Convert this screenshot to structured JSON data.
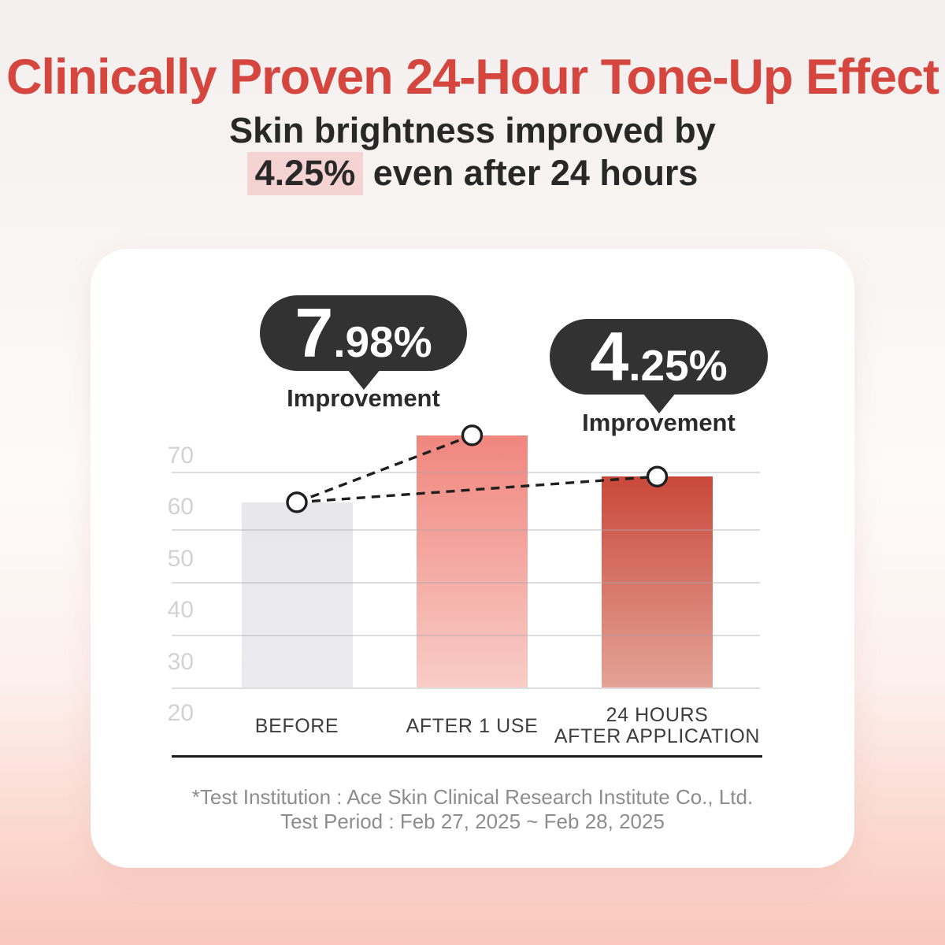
{
  "header": {
    "title": "Clinically Proven 24-Hour Tone-Up Effect",
    "subtitle_line1": "Skin brightness improved by",
    "subtitle_highlight": "4.25%",
    "subtitle_line2_rest": " even after 24 hours"
  },
  "bubbles": [
    {
      "value": "7.98%",
      "major": "7",
      "minor": ".98%",
      "label": "Improvement"
    },
    {
      "value": "4.25%",
      "major": "4",
      "minor": ".25%",
      "label": "Improvement"
    }
  ],
  "chart_data": {
    "type": "bar",
    "title": "24-Hour Tone-Up Effect clinical result",
    "categories": [
      "BEFORE",
      "AFTER 1 USE",
      "24 HOURS AFTER APPLICATION"
    ],
    "categories_lines": [
      [
        "BEFORE"
      ],
      [
        "AFTER 1 USE"
      ],
      [
        "24 HOURS",
        "AFTER APPLICATION"
      ]
    ],
    "values": [
      61,
      74,
      66
    ],
    "yticks": [
      70,
      60,
      50,
      40,
      30,
      20
    ],
    "ylim": [
      20,
      78
    ],
    "grid": true,
    "legend": "none",
    "annotations": [
      {
        "text": "7.98% Improvement",
        "applies_to": "AFTER 1 USE"
      },
      {
        "text": "4.25% Improvement",
        "applies_to": "24 HOURS AFTER APPLICATION"
      }
    ],
    "bar_colors": [
      {
        "top": "#e8e8eb",
        "bottom": "#ebebee"
      },
      {
        "top": "#f0867e",
        "bottom": "#f8ccc6"
      },
      {
        "top": "#c9483b",
        "bottom": "#e3a396"
      }
    ],
    "marker_style": "white circles with dark outline joined by dashed connectors"
  },
  "footer": {
    "note_line1": "*Test Institution : Ace Skin Clinical Research Institute Co., Ltd.",
    "note_line2": "Test Period : Feb 27, 2025 ~ Feb 28, 2025"
  },
  "colors": {
    "title_red": "#d5473e",
    "text_dark": "#282828",
    "highlight_pink": "#f6d3d3",
    "bubble_bg": "#323232",
    "axis_label_gray": "#d2d2d6",
    "gridline_gray": "#dcdcdc",
    "category_label": "#3d3d3d",
    "baseline_black": "#1b1b1b",
    "footer_gray": "#8d8d8d",
    "card_bg": "#ffffff",
    "background_bottom_pink": "#f9c7bd"
  }
}
